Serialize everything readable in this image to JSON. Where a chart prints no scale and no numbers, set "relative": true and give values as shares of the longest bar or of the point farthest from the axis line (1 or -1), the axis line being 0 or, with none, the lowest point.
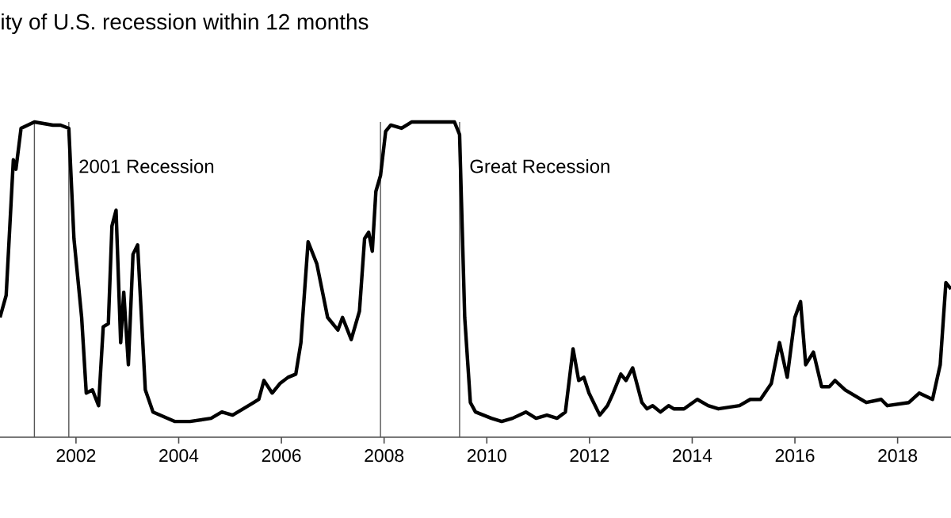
{
  "chart_data": {
    "type": "line",
    "title": "ity of U.S. recession within 12 months",
    "relative": true,
    "xlim": [
      2000.52,
      2019.04
    ],
    "xticks": [
      2002,
      2004,
      2006,
      2008,
      2010,
      2012,
      2014,
      2016,
      2018
    ],
    "grid": false,
    "marker": "none",
    "line_style": "solid",
    "series": [
      {
        "color": "#000000",
        "x": [
          2000.52,
          2000.64,
          2000.78,
          2000.83,
          2000.93,
          2001.19,
          2001.55,
          2001.7,
          2001.86,
          2001.96,
          2002.11,
          2002.2,
          2002.32,
          2002.44,
          2002.53,
          2002.63,
          2002.7,
          2002.78,
          2002.87,
          2002.93,
          2003.02,
          2003.11,
          2003.2,
          2003.35,
          2003.5,
          2003.92,
          2004.22,
          2004.63,
          2004.84,
          2005.05,
          2005.36,
          2005.56,
          2005.66,
          2005.82,
          2005.97,
          2006.13,
          2006.28,
          2006.38,
          2006.52,
          2006.69,
          2006.9,
          2007.1,
          2007.19,
          2007.36,
          2007.52,
          2007.62,
          2007.7,
          2007.77,
          2007.84,
          2007.93,
          2008.03,
          2008.13,
          2008.34,
          2008.54,
          2009.37,
          2009.47,
          2009.57,
          2009.68,
          2009.78,
          2010.09,
          2010.29,
          2010.5,
          2010.76,
          2010.96,
          2011.17,
          2011.37,
          2011.53,
          2011.68,
          2011.79,
          2011.89,
          2011.99,
          2012.2,
          2012.35,
          2012.46,
          2012.61,
          2012.71,
          2012.84,
          2013.02,
          2013.12,
          2013.23,
          2013.38,
          2013.54,
          2013.64,
          2013.84,
          2014.1,
          2014.31,
          2014.51,
          2014.92,
          2015.13,
          2015.33,
          2015.54,
          2015.7,
          2015.85,
          2016.0,
          2016.11,
          2016.21,
          2016.36,
          2016.52,
          2016.67,
          2016.78,
          2016.98,
          2017.39,
          2017.68,
          2017.8,
          2018.22,
          2018.42,
          2018.68,
          2018.83,
          2018.94,
          2019.04
        ],
        "values": [
          0.38,
          0.45,
          0.88,
          0.85,
          0.98,
          1.0,
          0.99,
          0.99,
          0.98,
          0.63,
          0.38,
          0.14,
          0.15,
          0.1,
          0.35,
          0.36,
          0.67,
          0.72,
          0.3,
          0.46,
          0.23,
          0.58,
          0.61,
          0.15,
          0.08,
          0.05,
          0.05,
          0.06,
          0.08,
          0.07,
          0.1,
          0.12,
          0.18,
          0.14,
          0.17,
          0.19,
          0.2,
          0.3,
          0.62,
          0.55,
          0.38,
          0.34,
          0.38,
          0.31,
          0.4,
          0.63,
          0.65,
          0.59,
          0.78,
          0.83,
          0.97,
          0.99,
          0.98,
          1.0,
          1.0,
          0.96,
          0.38,
          0.11,
          0.08,
          0.06,
          0.05,
          0.06,
          0.08,
          0.06,
          0.07,
          0.06,
          0.08,
          0.28,
          0.18,
          0.19,
          0.14,
          0.07,
          0.1,
          0.14,
          0.2,
          0.18,
          0.22,
          0.11,
          0.09,
          0.1,
          0.08,
          0.1,
          0.09,
          0.09,
          0.12,
          0.1,
          0.09,
          0.1,
          0.12,
          0.12,
          0.17,
          0.3,
          0.19,
          0.38,
          0.43,
          0.23,
          0.27,
          0.16,
          0.16,
          0.18,
          0.15,
          0.11,
          0.12,
          0.1,
          0.11,
          0.14,
          0.12,
          0.23,
          0.49,
          0.47
        ]
      }
    ],
    "ref_lines": [
      {
        "axis": "x",
        "value": 2001.19,
        "color": "#555555"
      },
      {
        "axis": "x",
        "value": 2001.86,
        "label": "2001 Recession",
        "color": "#555555"
      },
      {
        "axis": "x",
        "value": 2007.93,
        "color": "#555555"
      },
      {
        "axis": "x",
        "value": 2009.47,
        "label": "Great Recession",
        "color": "#555555"
      }
    ]
  }
}
